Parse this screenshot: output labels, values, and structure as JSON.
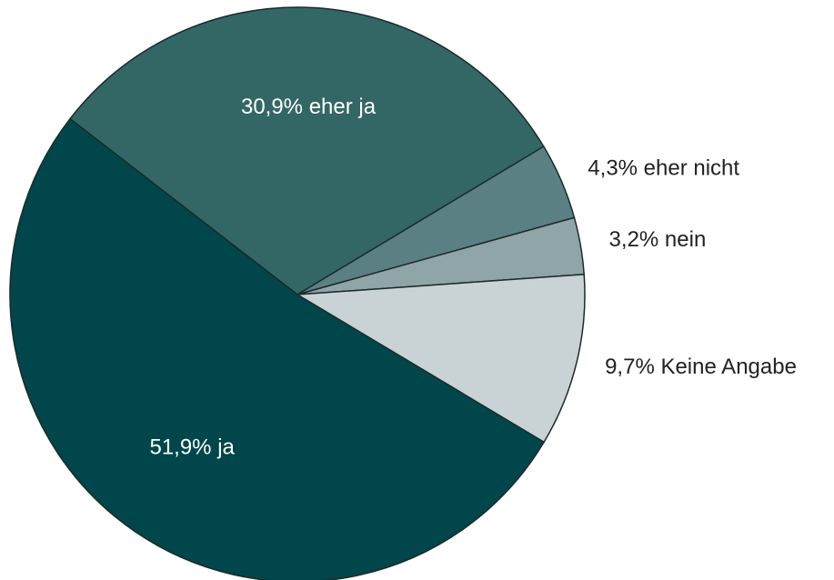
{
  "chart_data": {
    "type": "pie",
    "categories": [
      "ja",
      "eher ja",
      "eher nicht",
      "nein",
      "Keine Angabe"
    ],
    "values": [
      51.9,
      30.9,
      4.3,
      3.2,
      9.7
    ],
    "value_labels": [
      "51,9%",
      "30,9%",
      "4,3%",
      "3,2%",
      "9,7%"
    ],
    "colors": [
      "#00464a",
      "#336766",
      "#5a8084",
      "#8fa5a8",
      "#c9d2d4"
    ]
  }
}
